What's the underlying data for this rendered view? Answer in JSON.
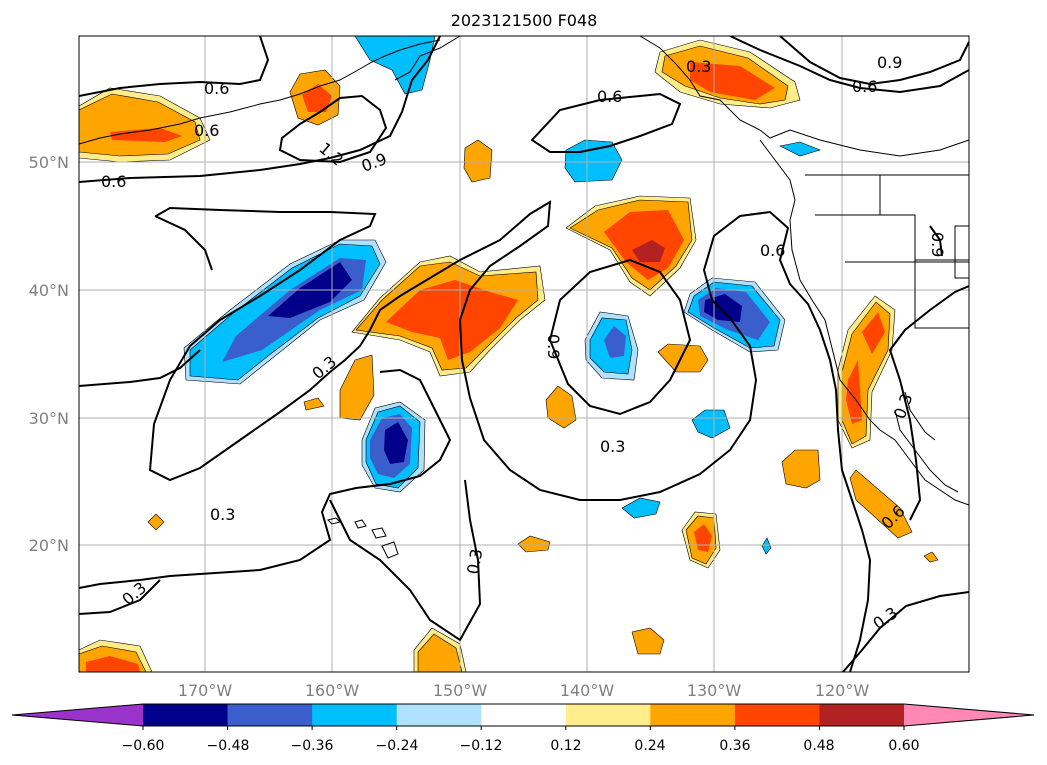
{
  "title": "2023121500 F048",
  "lat_labels": [
    "50°N",
    "40°N",
    "30°N",
    "20°N"
  ],
  "lon_labels": [
    "170°W",
    "160°W",
    "150°W",
    "140°W",
    "130°W",
    "120°W"
  ],
  "contour_labels": [
    "0.6",
    "0.6",
    "0.6",
    "0.9",
    "1.2",
    "0.9",
    "0.6",
    "0.3",
    "0.9",
    "0.6",
    "0.3",
    "0.9",
    "0.3",
    "0.3",
    "0.3",
    "0.3",
    "0.3",
    "0.6",
    "0.3",
    "0.6"
  ],
  "colorbar": {
    "colors": [
      "#9933cc",
      "#00008b",
      "#3a5fcd",
      "#00bfff",
      "#b0e2ff",
      "#ffffff",
      "#ffec8b",
      "#ffa500",
      "#ff4500",
      "#b22222",
      "#ff89b4"
    ],
    "tick_labels": [
      "−0.60",
      "−0.48",
      "−0.36",
      "−0.24",
      "−0.12",
      "0.12",
      "0.24",
      "0.36",
      "0.48",
      "0.60"
    ]
  },
  "colors": {
    "text": "#000000",
    "axis_label": "#808080",
    "grid": "#b0b0b0",
    "contour": "#000000"
  }
}
